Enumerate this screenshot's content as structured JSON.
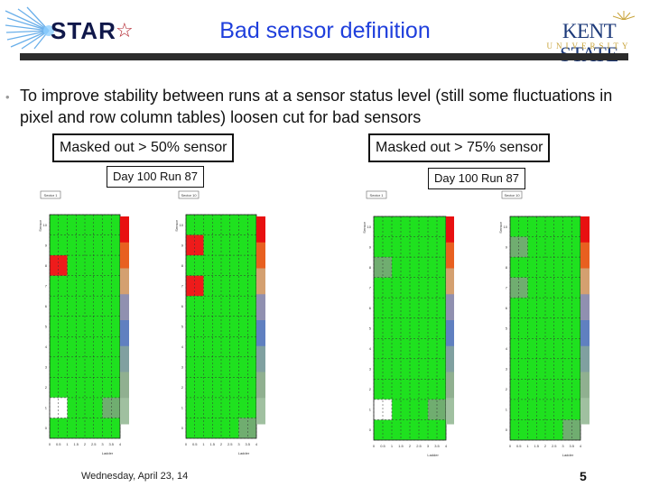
{
  "header": {
    "title": "Bad sensor definition",
    "star_logo_text": "STAR",
    "kent_logo_text": "KENT STATE",
    "kent_logo_sub": "UNIVERSITY"
  },
  "bullet": {
    "text": "To improve stability between runs at a sensor status level (still some fluctuations in pixel and row column tables) loosen cut for bad sensors"
  },
  "panels": [
    {
      "label": "Masked out > 50% sensor",
      "run": "Day 100 Run 87",
      "plots": [
        {
          "sector": "Sector 1",
          "cells": [
            {
              "col": 0,
              "row": 8,
              "state": "red"
            },
            {
              "col": 0,
              "row": 1,
              "state": "white"
            },
            {
              "col": 6,
              "row": 1,
              "state": "dark"
            }
          ]
        },
        {
          "sector": "Sector 10",
          "cells": [
            {
              "col": 0,
              "row": 9,
              "state": "red"
            },
            {
              "col": 0,
              "row": 7,
              "state": "red"
            },
            {
              "col": 6,
              "row": 0,
              "state": "dark"
            }
          ]
        }
      ]
    },
    {
      "label": "Masked out > 75% sensor",
      "run": "Day 100 Run 87",
      "plots": [
        {
          "sector": "Sector 1",
          "cells": [
            {
              "col": 0,
              "row": 8,
              "state": "dark"
            },
            {
              "col": 0,
              "row": 1,
              "state": "white"
            },
            {
              "col": 6,
              "row": 1,
              "state": "dark"
            }
          ]
        },
        {
          "sector": "Sector 10",
          "cells": [
            {
              "col": 0,
              "row": 9,
              "state": "dark"
            },
            {
              "col": 0,
              "row": 7,
              "state": "dark"
            },
            {
              "col": 6,
              "row": 0,
              "state": "dark"
            }
          ]
        }
      ]
    }
  ],
  "axis": {
    "xlabel": "Ladder",
    "ylabel": "Sensor",
    "x_ticks": [
      "0",
      "0.5",
      "1",
      "1.5",
      "2",
      "2.5",
      "3",
      "3.5",
      "4"
    ],
    "y_ticks": [
      "0",
      "1",
      "2",
      "3",
      "4",
      "5",
      "6",
      "7",
      "8",
      "9",
      "10"
    ]
  },
  "colors": {
    "green": "#1fe11f",
    "red": "#ee1b1b",
    "dark": "#70ad70",
    "white": "#ffffff"
  },
  "footer": {
    "date": "Wednesday, April 23, 14",
    "page": "5"
  }
}
